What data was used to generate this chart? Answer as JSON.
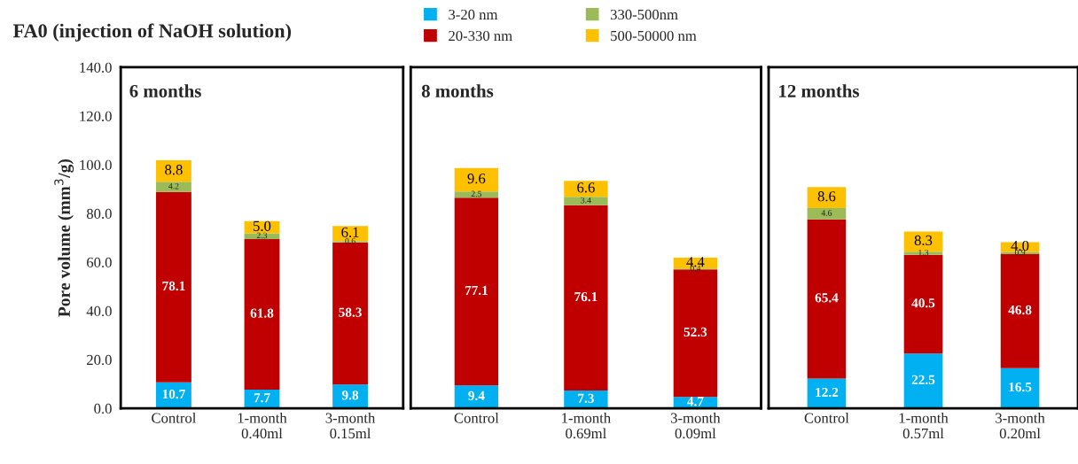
{
  "chart_data": [
    {
      "type": "bar",
      "stacked": true,
      "title": "FA0 (injection of NaOH solution)",
      "ylabel": "Pore volume (mm$^{3}$/g)",
      "annotations": [
        "6 months"
      ],
      "legend": "top",
      "grid": false,
      "categories": [
        "Control",
        "1-month\n0.40ml",
        "3-month\n0.15ml"
      ],
      "ylim": [
        0,
        140
      ],
      "yticks": [
        {
          "value": 0,
          "label": "0.0"
        },
        {
          "value": 20,
          "label": "20.0"
        },
        {
          "value": 40,
          "label": "40.0"
        },
        {
          "value": 60,
          "label": "60.0"
        },
        {
          "value": 80,
          "label": "80.0"
        },
        {
          "value": 100,
          "label": "100.0"
        },
        {
          "value": 120,
          "label": "120.0"
        },
        {
          "value": 140,
          "label": "140.0"
        }
      ],
      "series": [
        {
          "name": "3-20 nm",
          "color": "#00b0f0",
          "values": [
            10.7,
            7.7,
            9.8
          ],
          "value_labels": [
            "10.7",
            "7.7",
            "9.8"
          ]
        },
        {
          "name": "20-330 nm",
          "color": "#c00000",
          "values": [
            78.1,
            61.8,
            58.3
          ],
          "value_labels": [
            "78.1",
            "61.8",
            "58.3"
          ]
        },
        {
          "name": "330-500nm",
          "color": "#9bbb59",
          "values": [
            4.2,
            2.3,
            0.6
          ],
          "value_labels": [
            "4.2",
            "2.3",
            "0.6"
          ]
        },
        {
          "name": "500-50000 nm",
          "color": "#ffc000",
          "values": [
            8.8,
            5.0,
            6.1
          ],
          "value_labels": [
            "8.8",
            "5.0",
            "6.1"
          ]
        }
      ]
    },
    {
      "type": "bar",
      "stacked": true,
      "annotations": [
        "8 months"
      ],
      "grid": false,
      "tick_labels": "x",
      "categories": [
        "Control",
        "1-month\n0.69ml",
        "3-month\n0.09ml"
      ],
      "ylim": [
        0,
        140
      ],
      "series": [
        {
          "color": "#00b0f0",
          "values": [
            9.4,
            7.3,
            4.7
          ],
          "value_labels": [
            "9.4",
            "7.3",
            "4.7"
          ]
        },
        {
          "color": "#c00000",
          "values": [
            77.1,
            76.1,
            52.3
          ],
          "value_labels": [
            "77.1",
            "76.1",
            "52.3"
          ]
        },
        {
          "color": "#9bbb59",
          "values": [
            2.5,
            3.4,
            0.4
          ],
          "value_labels": [
            "2.5",
            "3.4",
            "0.4"
          ]
        },
        {
          "color": "#ffc000",
          "values": [
            9.6,
            6.6,
            4.4
          ],
          "value_labels": [
            "9.6",
            "6.6",
            "4.4"
          ]
        }
      ]
    },
    {
      "type": "bar",
      "stacked": true,
      "annotations": [
        "12 months"
      ],
      "grid": false,
      "tick_labels": "x",
      "categories": [
        "Control",
        "1-month\n0.57ml",
        "3-month\n0.20ml"
      ],
      "ylim": [
        0,
        140
      ],
      "series": [
        {
          "color": "#00b0f0",
          "values": [
            12.2,
            22.5,
            16.5
          ],
          "value_labels": [
            "12.2",
            "22.5",
            "16.5"
          ]
        },
        {
          "color": "#c00000",
          "values": [
            65.4,
            40.5,
            46.8
          ],
          "value_labels": [
            "65.4",
            "40.5",
            "46.8"
          ]
        },
        {
          "color": "#9bbb59",
          "values": [
            4.6,
            1.3,
            0.9
          ],
          "value_labels": [
            "4.6",
            "1.3",
            "0.9"
          ]
        },
        {
          "color": "#ffc000",
          "values": [
            8.6,
            8.3,
            4.0
          ],
          "value_labels": [
            "8.6",
            "8.3",
            "4.0"
          ]
        }
      ]
    }
  ]
}
